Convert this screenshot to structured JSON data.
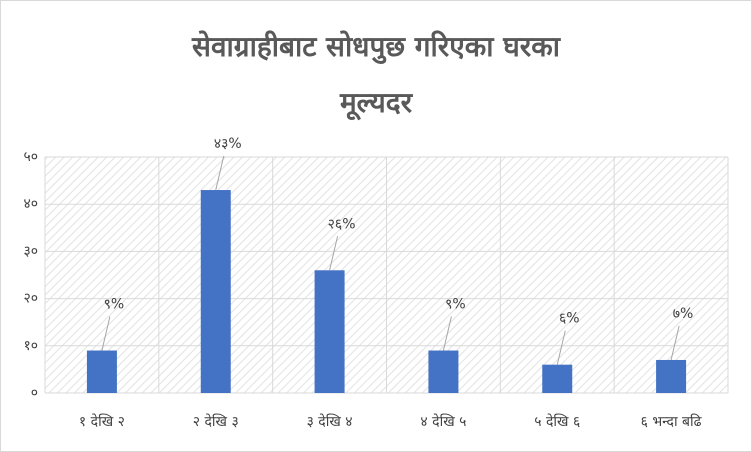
{
  "chart_data": {
    "type": "bar",
    "title": "सेवाग्राहीबाट सोधपुछ गरिएका घरका मूल्यदर",
    "categories": [
      "१ देखि २",
      "२ देखि ३",
      "३ देखि ४",
      "४ देखि ५",
      "५ देखि ६",
      "६ भन्दा बढि"
    ],
    "values": [
      9,
      43,
      26,
      9,
      6,
      7
    ],
    "value_labels": [
      "९%",
      "४३%",
      "२६%",
      "९%",
      "६%",
      "७%"
    ],
    "color": "#4472c4",
    "ylim": [
      0,
      50
    ],
    "yticks": [
      {
        "value": 0,
        "label": "०"
      },
      {
        "value": 10,
        "label": "१०"
      },
      {
        "value": 20,
        "label": "२०"
      },
      {
        "value": 30,
        "label": "३०"
      },
      {
        "value": 40,
        "label": "४०"
      },
      {
        "value": 50,
        "label": "५०"
      }
    ],
    "grid": true
  }
}
